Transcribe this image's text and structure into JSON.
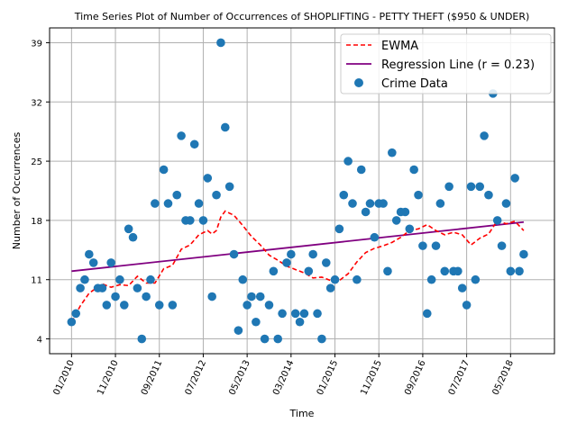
{
  "chart_data": {
    "type": "scatter",
    "title": "Time Series Plot of Number of Occurrences of SHOPLIFTING - PETTY THEFT ($950 & UNDER)",
    "xlabel": "Time",
    "ylabel": "Number of Occurrences",
    "x_ticks": [
      "01/2010",
      "11/2010",
      "09/2011",
      "07/2012",
      "05/2013",
      "03/2014",
      "01/2015",
      "11/2015",
      "09/2016",
      "07/2017",
      "05/2018"
    ],
    "y_ticks": [
      4,
      11,
      18,
      25,
      32,
      39
    ],
    "x_range": [
      "2009-08",
      "2019-03"
    ],
    "ylim": [
      2.25,
      40.75
    ],
    "grid": true,
    "legend_position": "upper-right",
    "colors": {
      "crime": "#1f77b4",
      "ewma": "#ff0000",
      "regression": "#800080"
    },
    "series": [
      {
        "name": "Crime Data",
        "kind": "scatter",
        "x": [
          "2010-01",
          "2010-02",
          "2010-03",
          "2010-04",
          "2010-05",
          "2010-06",
          "2010-07",
          "2010-08",
          "2010-09",
          "2010-10",
          "2010-11",
          "2010-12",
          "2011-01",
          "2011-02",
          "2011-03",
          "2011-04",
          "2011-05",
          "2011-06",
          "2011-07",
          "2011-08",
          "2011-09",
          "2011-10",
          "2011-11",
          "2011-12",
          "2012-01",
          "2012-02",
          "2012-03",
          "2012-04",
          "2012-05",
          "2012-06",
          "2012-07",
          "2012-08",
          "2012-09",
          "2012-10",
          "2012-11",
          "2012-12",
          "2013-01",
          "2013-02",
          "2013-03",
          "2013-04",
          "2013-05",
          "2013-06",
          "2013-07",
          "2013-08",
          "2013-09",
          "2013-10",
          "2013-11",
          "2013-12",
          "2014-01",
          "2014-02",
          "2014-03",
          "2014-04",
          "2014-05",
          "2014-06",
          "2014-07",
          "2014-08",
          "2014-09",
          "2014-10",
          "2014-11",
          "2014-12",
          "2015-01",
          "2015-02",
          "2015-03",
          "2015-04",
          "2015-05",
          "2015-06",
          "2015-07",
          "2015-08",
          "2015-09",
          "2015-10",
          "2015-11",
          "2015-12",
          "2016-01",
          "2016-02",
          "2016-03",
          "2016-04",
          "2016-05",
          "2016-06",
          "2016-07",
          "2016-08",
          "2016-09",
          "2016-10",
          "2016-11",
          "2016-12",
          "2017-01",
          "2017-02",
          "2017-03",
          "2017-04",
          "2017-05",
          "2017-06",
          "2017-07",
          "2017-08",
          "2017-09",
          "2017-10",
          "2017-11",
          "2017-12",
          "2018-01",
          "2018-02",
          "2018-03",
          "2018-04",
          "2018-05",
          "2018-06",
          "2018-07",
          "2018-08"
        ],
        "values": [
          6,
          7,
          10,
          11,
          14,
          13,
          10,
          10,
          8,
          13,
          9,
          11,
          8,
          17,
          16,
          10,
          4,
          9,
          11,
          20,
          8,
          24,
          20,
          8,
          21,
          28,
          18,
          18,
          27,
          20,
          18,
          23,
          9,
          21,
          39,
          29,
          22,
          14,
          5,
          11,
          8,
          9,
          6,
          9,
          4,
          8,
          12,
          4,
          7,
          13,
          14,
          7,
          6,
          7,
          12,
          14,
          7,
          4,
          13,
          10,
          11,
          17,
          21,
          25,
          20,
          11,
          24,
          19,
          20,
          16,
          20,
          20,
          12,
          26,
          18,
          19,
          19,
          17,
          24,
          21,
          15,
          7,
          11,
          15,
          20,
          12,
          22,
          12,
          12,
          10,
          8,
          22,
          11,
          22,
          28,
          21,
          33,
          18,
          15,
          20,
          12,
          23,
          12,
          14
        ]
      },
      {
        "name": "EWMA",
        "kind": "line",
        "x": [
          "2010-01",
          "2010-03",
          "2010-05",
          "2010-08",
          "2010-10",
          "2010-12",
          "2011-02",
          "2011-04",
          "2011-06",
          "2011-08",
          "2011-10",
          "2011-12",
          "2012-02",
          "2012-04",
          "2012-06",
          "2012-08",
          "2012-09",
          "2012-10",
          "2012-11",
          "2012-12",
          "2013-02",
          "2013-04",
          "2013-06",
          "2013-08",
          "2013-10",
          "2013-12",
          "2014-02",
          "2014-04",
          "2014-06",
          "2014-08",
          "2014-10",
          "2014-12",
          "2015-02",
          "2015-04",
          "2015-06",
          "2015-08",
          "2015-10",
          "2015-12",
          "2016-02",
          "2016-04",
          "2016-06",
          "2016-08",
          "2016-10",
          "2016-12",
          "2017-02",
          "2017-04",
          "2017-06",
          "2017-08",
          "2017-10",
          "2017-12",
          "2018-02",
          "2018-04",
          "2018-06",
          "2018-08"
        ],
        "values": [
          6,
          7.9,
          9.4,
          10.5,
          10.1,
          10.4,
          10.3,
          11.4,
          10.6,
          10.6,
          12.3,
          12.7,
          14.6,
          15.1,
          16.3,
          16.8,
          16.4,
          16.8,
          18.4,
          19.1,
          18.6,
          17.4,
          16.1,
          15.1,
          13.9,
          13.3,
          12.6,
          12.2,
          11.8,
          11.2,
          11.3,
          10.9,
          10.9,
          11.7,
          13.1,
          14.2,
          14.7,
          15.0,
          15.4,
          16.0,
          16.8,
          17.0,
          17.5,
          16.8,
          16.3,
          16.6,
          16.3,
          15.1,
          15.9,
          16.4,
          18.0,
          17.6,
          17.9,
          16.8
        ]
      },
      {
        "name": "Regression Line (r = 0.23)",
        "kind": "line",
        "x": [
          "2010-01",
          "2018-08"
        ],
        "values": [
          12.0,
          17.8
        ]
      }
    ]
  }
}
